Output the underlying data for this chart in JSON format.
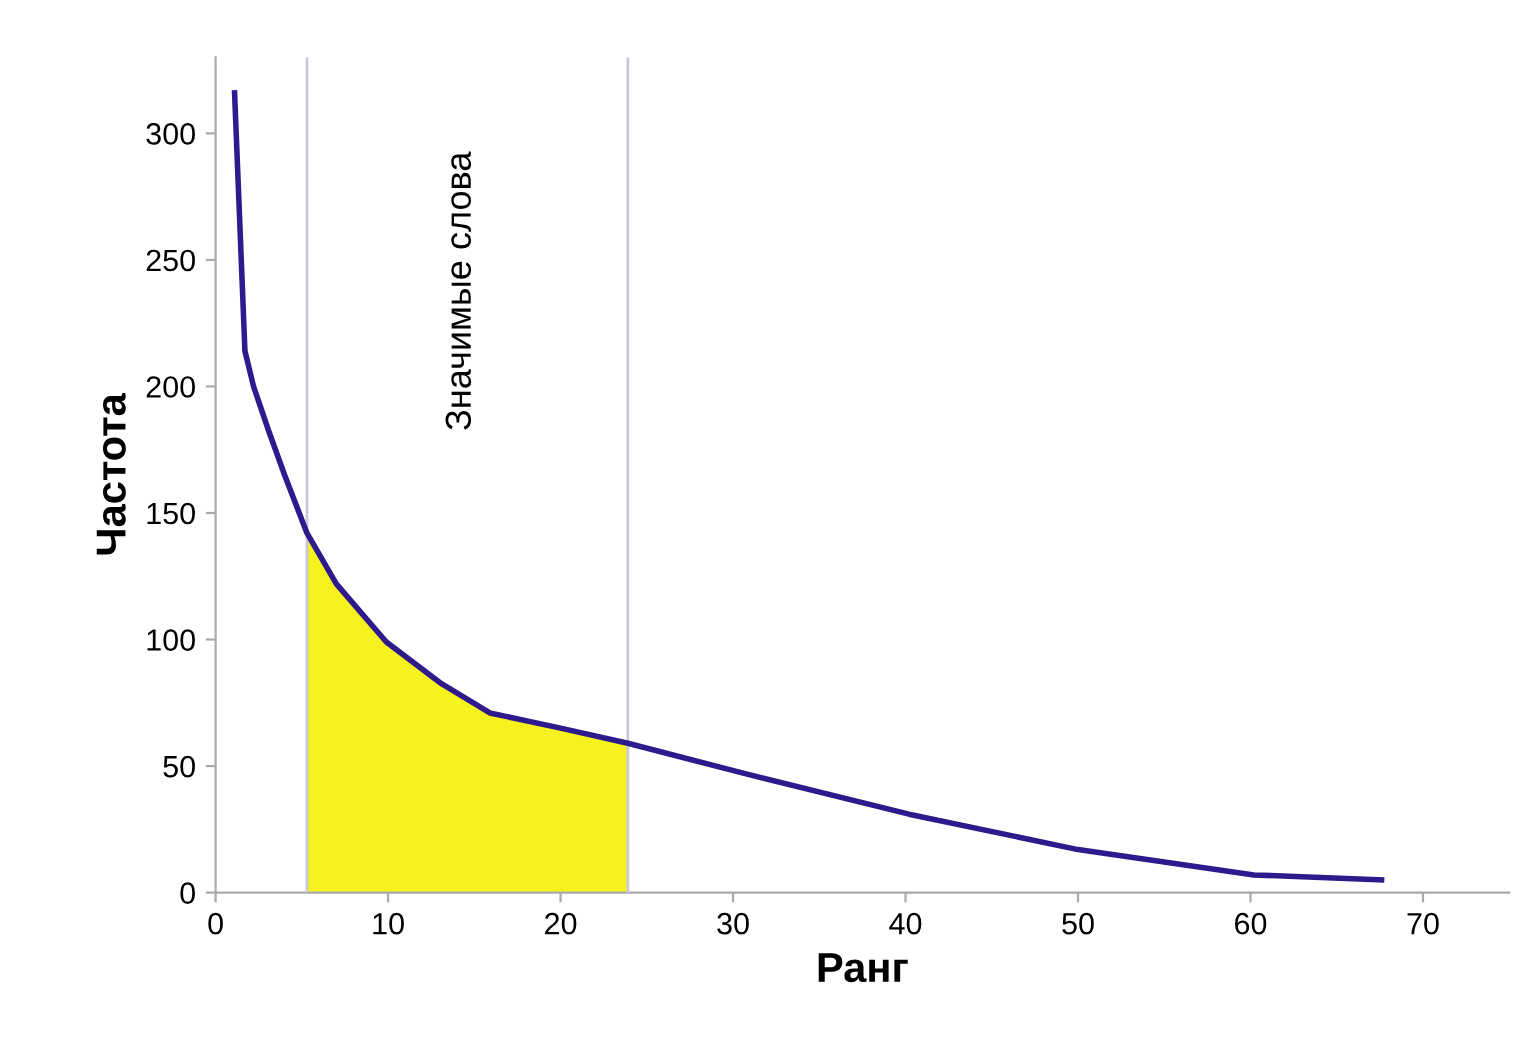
{
  "chart_data": {
    "type": "line",
    "xlabel": "Ранг",
    "ylabel": "Частота",
    "x": [
      1.1,
      1.4,
      1.7,
      2.2,
      3.1,
      4,
      5.3,
      7,
      9.9,
      13,
      15.9,
      20,
      23.9,
      30.7,
      40.2,
      50,
      60.2,
      67.6
    ],
    "series": [
      {
        "type": "area",
        "color": "#f7f21e",
        "values": [
          null,
          null,
          null,
          null,
          null,
          null,
          142,
          122,
          99,
          83,
          71,
          65,
          59,
          null,
          null,
          null,
          null,
          null
        ]
      },
      {
        "color": "#2e1a8c",
        "values": [
          316,
          265,
          214,
          200,
          182,
          165,
          142,
          122,
          99,
          83,
          71,
          65,
          59,
          47,
          31,
          17,
          7,
          5
        ]
      }
    ],
    "ref_lines": [
      {
        "axis": "x",
        "value": 5.3,
        "color": "#c8c8d8"
      },
      {
        "axis": "x",
        "value": 23.9,
        "color": "#c8c8d8"
      }
    ],
    "annotations": [
      "Значимые слова"
    ],
    "xlim": [
      0,
      75
    ],
    "ylim": [
      0,
      330
    ],
    "xticks": [
      0,
      10,
      20,
      30,
      40,
      50,
      60,
      70
    ],
    "yticks": [
      0,
      50,
      100,
      150,
      200,
      250,
      300
    ],
    "grid": false,
    "legend": false
  }
}
